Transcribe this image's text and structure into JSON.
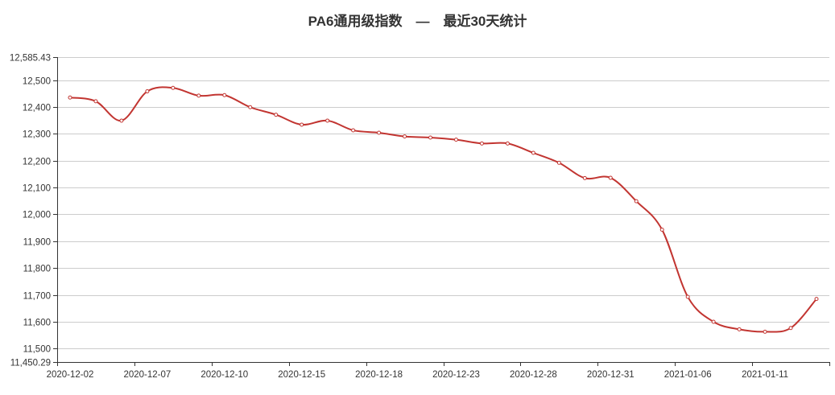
{
  "chart_data": {
    "type": "line",
    "title": "PA6通用级指数　—　最近30天统计",
    "xlabel": "",
    "ylabel": "",
    "ylim": [
      11450.29,
      12585.43
    ],
    "y_ticks": [
      11450.29,
      11500,
      11600,
      11700,
      11800,
      11900,
      12000,
      12100,
      12200,
      12300,
      12400,
      12500,
      12585.43
    ],
    "y_tick_labels": [
      "11,450.29",
      "11,500",
      "11,600",
      "11,700",
      "11,800",
      "11,900",
      "12,000",
      "12,100",
      "12,200",
      "12,300",
      "12,400",
      "12,500",
      "12,585.43"
    ],
    "x_tick_labels": [
      {
        "label": "2020-12-02",
        "index": 0
      },
      {
        "label": "2020-12-07",
        "index": 3
      },
      {
        "label": "2020-12-10",
        "index": 6
      },
      {
        "label": "2020-12-15",
        "index": 9
      },
      {
        "label": "2020-12-18",
        "index": 12
      },
      {
        "label": "2020-12-23",
        "index": 15
      },
      {
        "label": "2020-12-28",
        "index": 18
      },
      {
        "label": "2020-12-31",
        "index": 21
      },
      {
        "label": "2021-01-06",
        "index": 24
      },
      {
        "label": "2021-01-11",
        "index": 27
      }
    ],
    "grid": true,
    "legend": "none",
    "series": [
      {
        "color": "#c23531",
        "values": [
          12435,
          12421,
          12349,
          12458,
          12471,
          12442,
          12444,
          12399,
          12371,
          12334,
          12349,
          12313,
          12304,
          12290,
          12286,
          12278,
          12264,
          12264,
          12229,
          12192,
          12135,
          12136,
          12049,
          11943,
          11693,
          11600,
          11572,
          11563,
          11577,
          11685
        ]
      }
    ]
  }
}
